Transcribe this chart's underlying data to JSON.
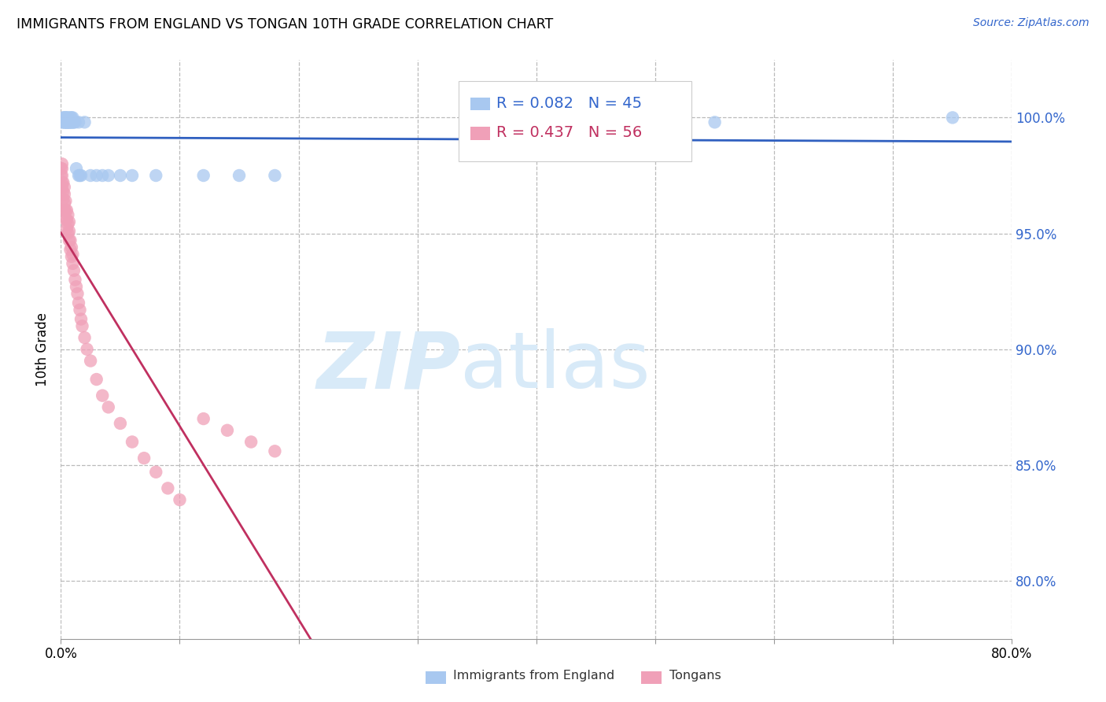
{
  "title": "IMMIGRANTS FROM ENGLAND VS TONGAN 10TH GRADE CORRELATION CHART",
  "source": "Source: ZipAtlas.com",
  "ylabel": "10th Grade",
  "ytick_labels": [
    "80.0%",
    "85.0%",
    "90.0%",
    "95.0%",
    "100.0%"
  ],
  "ytick_values": [
    0.8,
    0.85,
    0.9,
    0.95,
    1.0
  ],
  "xlim": [
    0.0,
    0.8
  ],
  "ylim": [
    0.775,
    1.025
  ],
  "england_R": 0.082,
  "england_N": 45,
  "tongan_R": 0.437,
  "tongan_N": 56,
  "england_color": "#A8C8F0",
  "tongan_color": "#F0A0B8",
  "england_line_color": "#3060C0",
  "tongan_line_color": "#C03060",
  "watermark_zip": "ZIP",
  "watermark_atlas": "atlas",
  "watermark_color": "#D8EAF8",
  "england_x": [
    0.001,
    0.002,
    0.002,
    0.003,
    0.003,
    0.003,
    0.004,
    0.004,
    0.004,
    0.005,
    0.005,
    0.005,
    0.006,
    0.006,
    0.006,
    0.007,
    0.007,
    0.008,
    0.008,
    0.008,
    0.009,
    0.009,
    0.01,
    0.01,
    0.01,
    0.011,
    0.012,
    0.013,
    0.015,
    0.015,
    0.016,
    0.017,
    0.02,
    0.025,
    0.03,
    0.035,
    0.04,
    0.05,
    0.06,
    0.08,
    0.12,
    0.15,
    0.18,
    0.55,
    0.75
  ],
  "england_y": [
    0.998,
    0.998,
    1.0,
    0.998,
    0.998,
    1.0,
    0.998,
    1.0,
    0.998,
    0.998,
    0.998,
    1.0,
    0.998,
    0.998,
    1.0,
    0.998,
    0.998,
    0.998,
    0.998,
    1.0,
    0.998,
    1.0,
    0.998,
    1.0,
    0.998,
    0.998,
    0.998,
    0.978,
    0.998,
    0.975,
    0.975,
    0.975,
    0.998,
    0.975,
    0.975,
    0.975,
    0.975,
    0.975,
    0.975,
    0.975,
    0.975,
    0.975,
    0.975,
    0.998,
    1.0
  ],
  "tongan_x": [
    0.0,
    0.0,
    0.001,
    0.001,
    0.001,
    0.001,
    0.001,
    0.002,
    0.002,
    0.002,
    0.003,
    0.003,
    0.003,
    0.003,
    0.004,
    0.004,
    0.004,
    0.005,
    0.005,
    0.005,
    0.006,
    0.006,
    0.006,
    0.007,
    0.007,
    0.007,
    0.008,
    0.008,
    0.009,
    0.009,
    0.01,
    0.01,
    0.011,
    0.012,
    0.013,
    0.014,
    0.015,
    0.016,
    0.017,
    0.018,
    0.02,
    0.022,
    0.025,
    0.03,
    0.035,
    0.04,
    0.05,
    0.06,
    0.07,
    0.08,
    0.09,
    0.1,
    0.12,
    0.14,
    0.16,
    0.18
  ],
  "tongan_y": [
    0.975,
    0.978,
    0.97,
    0.972,
    0.975,
    0.978,
    0.98,
    0.965,
    0.968,
    0.972,
    0.96,
    0.963,
    0.967,
    0.97,
    0.956,
    0.96,
    0.964,
    0.952,
    0.956,
    0.96,
    0.95,
    0.954,
    0.958,
    0.947,
    0.951,
    0.955,
    0.943,
    0.947,
    0.94,
    0.944,
    0.937,
    0.941,
    0.934,
    0.93,
    0.927,
    0.924,
    0.92,
    0.917,
    0.913,
    0.91,
    0.905,
    0.9,
    0.895,
    0.887,
    0.88,
    0.875,
    0.868,
    0.86,
    0.853,
    0.847,
    0.84,
    0.835,
    0.87,
    0.865,
    0.86,
    0.856
  ]
}
